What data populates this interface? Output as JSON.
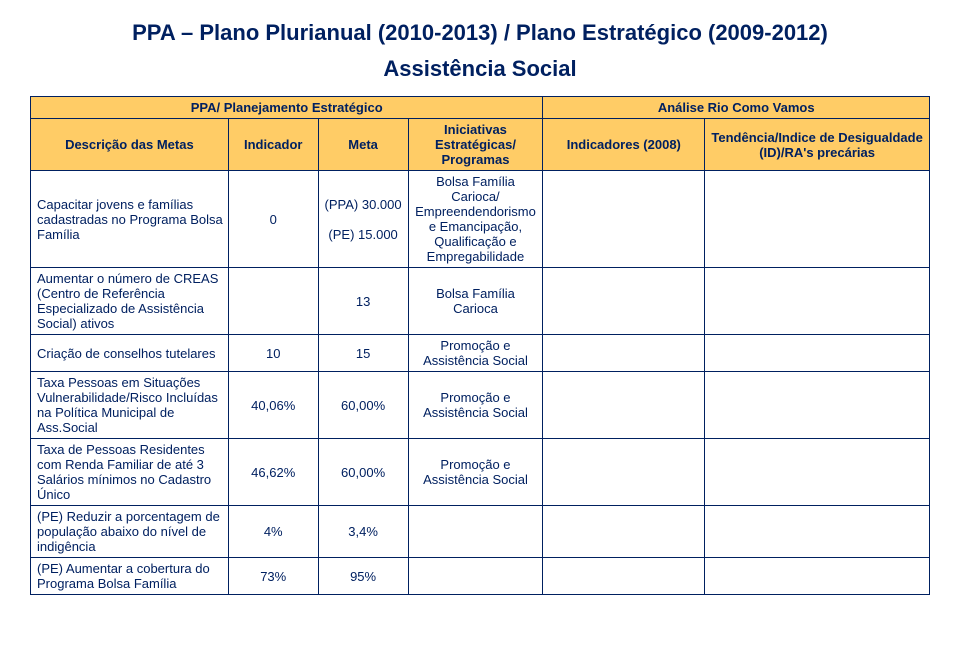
{
  "title": "PPA – Plano Plurianual (2010-2013) / Plano Estratégico (2009-2012)",
  "subtitle": "Assistência Social",
  "header": {
    "group_left": "PPA/ Planejamento Estratégico",
    "group_right": "Análise Rio Como Vamos",
    "c0": "Descrição das Metas",
    "c1": "Indicador",
    "c2": "Meta",
    "c3": "Iniciativas Estratégicas/ Programas",
    "c4": "Indicadores (2008)",
    "c5": "Tendência/Indice de Desigualdade (ID)/RA's precárias"
  },
  "rows": [
    {
      "desc": "Capacitar jovens e famílias cadastradas no Programa Bolsa Família",
      "indicador": "0",
      "meta": "(PPA) 30.000\n\n(PE) 15.000",
      "init": "Bolsa Família Carioca/ Empreendendorismo e Emancipação, Qualificação e Empregabilidade",
      "ind2008": "",
      "tend": ""
    },
    {
      "desc": "Aumentar o número de CREAS (Centro de Referência Especializado de Assistência Social) ativos",
      "indicador": "",
      "meta": "13",
      "init": "Bolsa Família Carioca",
      "ind2008": "",
      "tend": ""
    },
    {
      "desc": "Criação de conselhos tutelares",
      "indicador": "10",
      "meta": "15",
      "init": "Promoção e Assistência Social",
      "ind2008": "",
      "tend": ""
    },
    {
      "desc": "Taxa Pessoas em Situações Vulnerabilidade/Risco Incluídas na Política Municipal de Ass.Social",
      "indicador": "40,06%",
      "meta": "60,00%",
      "init": "Promoção e Assistência Social",
      "ind2008": "",
      "tend": ""
    },
    {
      "desc": "Taxa de Pessoas Residentes com Renda Familiar de até 3 Salários mínimos no Cadastro Único",
      "indicador": "46,62%",
      "meta": "60,00%",
      "init": "Promoção e Assistência Social",
      "ind2008": "",
      "tend": ""
    },
    {
      "desc": "(PE) Reduzir a porcentagem de população abaixo do nível de indigência",
      "indicador": "4%",
      "meta": "3,4%",
      "init": "",
      "ind2008": "",
      "tend": ""
    },
    {
      "desc": "(PE) Aumentar a cobertura do Programa Bolsa Família",
      "indicador": "73%",
      "meta": "95%",
      "init": "",
      "ind2008": "",
      "tend": ""
    }
  ],
  "styles": {
    "header_bg": "#ffcc66",
    "border_color": "#002060",
    "text_color": "#002060",
    "background": "#ffffff",
    "title_fontsize": 22,
    "cell_fontsize": 13
  }
}
